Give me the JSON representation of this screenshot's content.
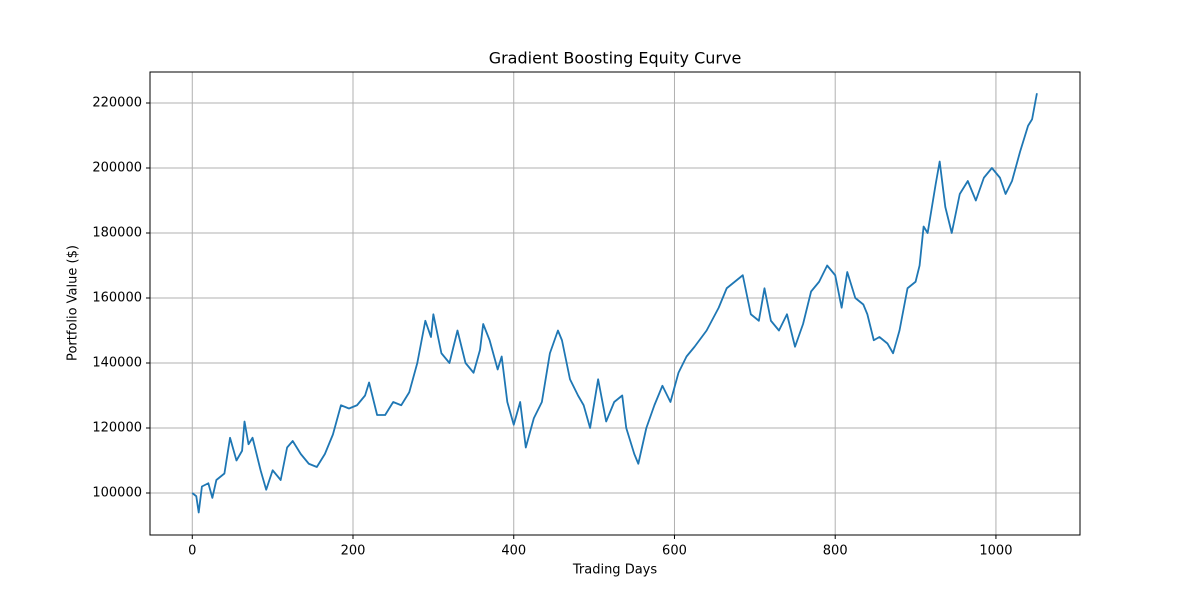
{
  "chart_data": {
    "type": "line",
    "title": "Gradient Boosting Equity Curve",
    "x_label": "Trading Days",
    "y_label": "Portfolio Value ($)",
    "xlim": [
      -52.6,
      1104.6
    ],
    "ylim": [
      87077,
      229538
    ],
    "xticks": [
      0,
      200,
      400,
      600,
      800,
      1000
    ],
    "yticks": [
      100000,
      120000,
      140000,
      160000,
      180000,
      200000,
      220000
    ],
    "grid": true,
    "series": [
      {
        "color": "#1f77b4",
        "x": [
          0,
          5,
          8,
          12,
          20,
          25,
          30,
          40,
          47,
          55,
          62,
          65,
          70,
          75,
          85,
          92,
          100,
          110,
          118,
          125,
          135,
          145,
          155,
          165,
          175,
          185,
          195,
          205,
          215,
          220,
          230,
          240,
          250,
          260,
          270,
          280,
          290,
          297,
          300,
          310,
          320,
          330,
          340,
          350,
          358,
          362,
          370,
          380,
          385,
          392,
          400,
          408,
          415,
          425,
          435,
          445,
          455,
          460,
          470,
          480,
          487,
          495,
          505,
          515,
          525,
          535,
          540,
          550,
          555,
          565,
          575,
          585,
          595,
          605,
          615,
          625,
          640,
          655,
          665,
          675,
          685,
          695,
          705,
          712,
          720,
          730,
          740,
          750,
          760,
          770,
          780,
          790,
          800,
          808,
          815,
          825,
          835,
          840,
          848,
          855,
          865,
          872,
          880,
          890,
          900,
          905,
          910,
          915,
          925,
          930,
          937,
          945,
          955,
          965,
          975,
          985,
          995,
          1005,
          1012,
          1020,
          1030,
          1040,
          1045,
          1051
        ],
        "values": [
          100000,
          99000,
          94000,
          102000,
          103000,
          98500,
          104000,
          106000,
          117000,
          110000,
          113000,
          122000,
          115000,
          117000,
          107000,
          101000,
          107000,
          104000,
          114000,
          116000,
          112000,
          109000,
          108000,
          112000,
          118000,
          127000,
          126000,
          127000,
          130000,
          134000,
          124000,
          124000,
          128000,
          127000,
          131000,
          140000,
          153000,
          148000,
          155000,
          143000,
          140000,
          150000,
          140000,
          137000,
          144000,
          152000,
          147000,
          138000,
          142000,
          128000,
          121000,
          128000,
          114000,
          123000,
          128000,
          143000,
          150000,
          147000,
          135000,
          130000,
          127000,
          120000,
          135000,
          122000,
          128000,
          130000,
          120000,
          112000,
          109000,
          120000,
          127000,
          133000,
          128000,
          137000,
          142000,
          145000,
          150000,
          157000,
          163000,
          165000,
          167000,
          155000,
          153000,
          163000,
          153000,
          150000,
          155000,
          145000,
          152000,
          162000,
          165000,
          170000,
          167000,
          157000,
          168000,
          160000,
          158000,
          155000,
          147000,
          148000,
          146000,
          143000,
          150000,
          163000,
          165000,
          170000,
          182000,
          180000,
          195000,
          202000,
          188000,
          180000,
          192000,
          196000,
          190000,
          197000,
          200000,
          197000,
          192000,
          196000,
          205000,
          213000,
          215000,
          223000
        ]
      }
    ]
  }
}
